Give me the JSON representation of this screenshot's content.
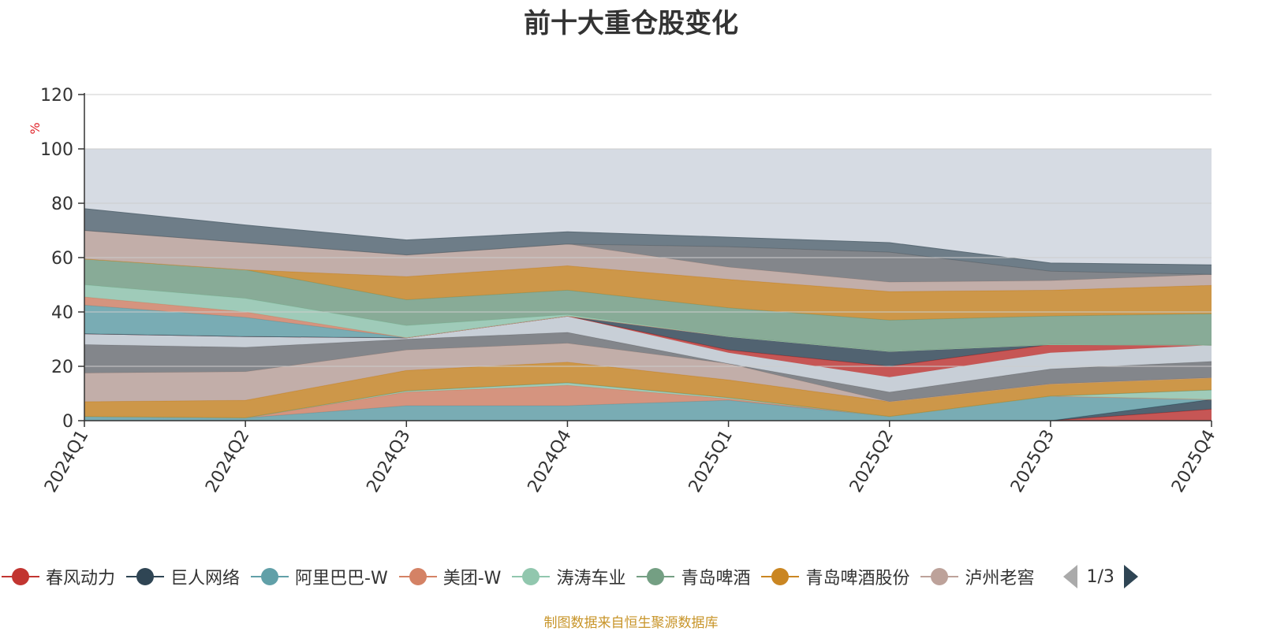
{
  "chart_data": {
    "type": "area",
    "title": "前十大重仓股变化",
    "ylabel": "%",
    "ylim": [
      0,
      120
    ],
    "yticks": [
      0,
      20,
      40,
      60,
      80,
      100,
      120
    ],
    "background_band": [
      0,
      100
    ],
    "categories": [
      "2024Q1",
      "2024Q2",
      "2024Q3",
      "2024Q4",
      "2025Q1",
      "2025Q2",
      "2025Q3",
      "2025Q4"
    ],
    "series": [
      {
        "name": "春风动力",
        "color": "#c23531",
        "values": [
          0,
          0,
          0,
          0,
          0,
          0,
          0,
          4.2
        ]
      },
      {
        "name": "巨人网络",
        "color": "#2f4554",
        "values": [
          0,
          0,
          0,
          0,
          0,
          0,
          0,
          3.6
        ]
      },
      {
        "name": "阿里巴巴-W",
        "color": "#61a0a8",
        "values": [
          1.5,
          1.0,
          5.5,
          5.5,
          7.5,
          1.5,
          9.0,
          0
        ]
      },
      {
        "name": "美团-W",
        "color": "#d48265",
        "values": [
          0,
          0,
          5.0,
          7.5,
          0.5,
          0,
          0,
          0
        ]
      },
      {
        "name": "涛涛车业",
        "color": "#91c7ae",
        "values": [
          0,
          0,
          0.5,
          1.0,
          0.5,
          0,
          0,
          3.5
        ]
      },
      {
        "name": "青岛啤酒",
        "color": "#749f83",
        "values": [
          0,
          0,
          0,
          0,
          0,
          0,
          0,
          0
        ]
      },
      {
        "name": "青岛啤酒股份",
        "color": "#ca8622",
        "values": [
          5.5,
          6.5,
          7.5,
          7.5,
          6.5,
          5.5,
          4.5,
          4.5
        ]
      },
      {
        "name": "泸州老窖",
        "color": "#bda29a",
        "values": [
          10.5,
          10.5,
          7.5,
          7.0,
          6.0,
          0,
          0,
          0
        ]
      },
      {
        "name": "",
        "color": "#6e7074",
        "values": [
          10.5,
          9.0,
          4.0,
          4.0,
          0,
          3.5,
          5.5,
          6.0
        ]
      },
      {
        "name": "",
        "color": "#c4ccd3",
        "values": [
          4.0,
          4.0,
          0.5,
          6.0,
          4.0,
          5.5,
          6.0,
          6.0
        ]
      },
      {
        "name": "",
        "color": "#c23531",
        "values": [
          0,
          0,
          0,
          0,
          1.0,
          4.0,
          3.0,
          0
        ]
      },
      {
        "name": "",
        "color": "#2f4554",
        "values": [
          0,
          0,
          0,
          0,
          5.0,
          5.5,
          0,
          0
        ]
      },
      {
        "name": "",
        "color": "#61a0a8",
        "values": [
          10.5,
          7.0,
          0,
          0,
          0,
          0,
          0,
          0
        ]
      },
      {
        "name": "",
        "color": "#d48265",
        "values": [
          3.0,
          2.0,
          0,
          0,
          0,
          0,
          0,
          0
        ]
      },
      {
        "name": "",
        "color": "#91c7ae",
        "values": [
          4.5,
          5.0,
          4.5,
          0.5,
          0,
          0,
          0,
          0
        ]
      },
      {
        "name": "",
        "color": "#749f83",
        "values": [
          9.5,
          10.5,
          9.5,
          9.0,
          10.5,
          11.5,
          10.5,
          11.5
        ]
      },
      {
        "name": "",
        "color": "#ca8622",
        "values": [
          0,
          0,
          8.5,
          9.0,
          10.5,
          10.5,
          9.5,
          10.5
        ]
      },
      {
        "name": "",
        "color": "#bda29a",
        "values": [
          10.5,
          10.0,
          8.0,
          8.0,
          4.5,
          3.5,
          3.5,
          4.0
        ]
      },
      {
        "name": "",
        "color": "#6e7074",
        "values": [
          0,
          0,
          0,
          0,
          7.5,
          11.0,
          3.5,
          0
        ]
      },
      {
        "name": "",
        "color": "#546570",
        "values": [
          8.0,
          6.5,
          5.5,
          4.5,
          3.5,
          3.5,
          3.0,
          3.5
        ]
      }
    ]
  },
  "legend": {
    "items": [
      {
        "label": "春风动力",
        "color": "#c23531"
      },
      {
        "label": "巨人网络",
        "color": "#2f4554"
      },
      {
        "label": "阿里巴巴-W",
        "color": "#61a0a8"
      },
      {
        "label": "美团-W",
        "color": "#d48265"
      },
      {
        "label": "涛涛车业",
        "color": "#91c7ae"
      },
      {
        "label": "青岛啤酒",
        "color": "#749f83"
      },
      {
        "label": "青岛啤酒股份",
        "color": "#ca8622"
      },
      {
        "label": "泸州老窖",
        "color": "#bda29a"
      }
    ],
    "page_indicator": "1/3",
    "prev_icon": "triangle-left-icon",
    "next_icon": "triangle-right-icon"
  },
  "source_note": "制图数据来自恒生聚源数据库",
  "colors": {
    "band": "#d6dbe3",
    "grid": "#cccccc",
    "axis": "#333333",
    "ylabel": "#e0242a",
    "source": "#c8952a"
  }
}
